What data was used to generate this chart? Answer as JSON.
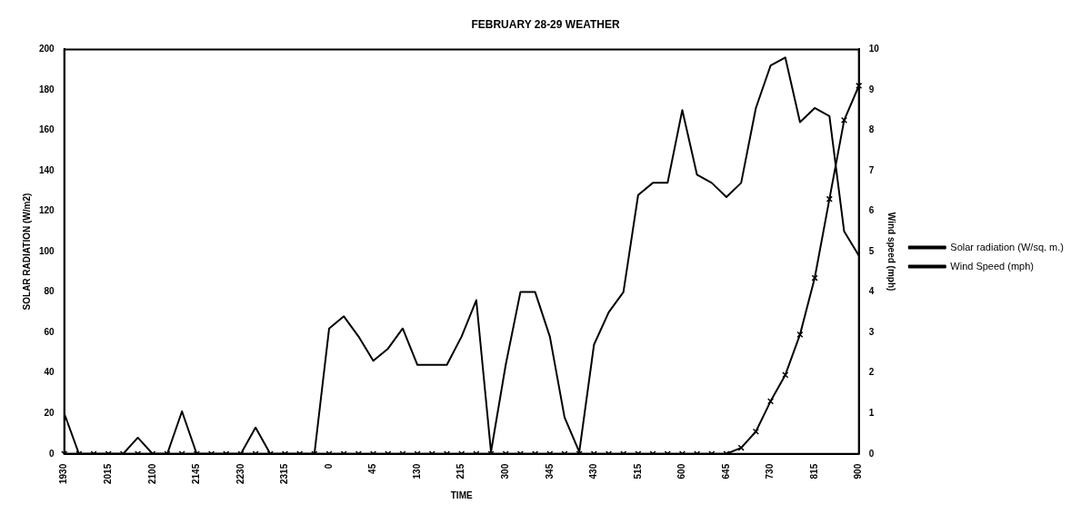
{
  "chart_data": {
    "type": "line",
    "title": "FEBRUARY 28-29 WEATHER",
    "xlabel": "TIME",
    "ylabel": "SOLAR RADIATION (W/m2)",
    "y2label": "Wind speed (mph)",
    "categories": [
      "1930",
      null,
      null,
      "2015",
      null,
      null,
      "2100",
      null,
      null,
      "2145",
      null,
      null,
      "2230",
      null,
      null,
      "2315",
      null,
      null,
      "0",
      null,
      null,
      "45",
      null,
      null,
      "130",
      null,
      null,
      "215",
      null,
      null,
      "300",
      null,
      null,
      "345",
      null,
      null,
      "430",
      null,
      null,
      "515",
      null,
      null,
      "600",
      null,
      null,
      "645",
      null,
      null,
      "730",
      null,
      null,
      "815",
      null,
      null,
      "900"
    ],
    "series": [
      {
        "name": "Solar radiation (W/sq. m.)",
        "color": "#000000",
        "marker": "cross",
        "values": [
          0,
          0,
          0,
          0,
          0,
          0,
          0,
          0,
          0,
          0,
          0,
          0,
          0,
          0,
          0,
          0,
          0,
          0,
          0,
          0,
          0,
          0,
          0,
          0,
          0,
          0,
          0,
          0,
          0,
          0,
          0,
          0,
          0,
          0,
          0,
          0,
          0,
          0,
          0,
          0,
          0,
          0,
          0,
          0,
          0,
          0,
          3,
          11,
          26,
          39,
          59,
          87,
          126,
          165,
          182
        ]
      },
      {
        "name": "Wind Speed (mph)",
        "color": "#000000",
        "axis": "y2",
        "marker": "none",
        "values": [
          1.0,
          0,
          0,
          0,
          0,
          0.4,
          0,
          0,
          1.05,
          0,
          0,
          0,
          0,
          0.65,
          0,
          0,
          0,
          0,
          3.1,
          3.4,
          2.9,
          2.3,
          2.6,
          3.1,
          2.2,
          2.2,
          2.2,
          2.9,
          3.8,
          0.05,
          2.2,
          4.0,
          4.0,
          2.9,
          0.9,
          0.05,
          2.7,
          3.5,
          4.0,
          6.4,
          6.7,
          6.7,
          8.5,
          6.9,
          6.7,
          6.35,
          6.7,
          8.55,
          9.6,
          9.8,
          8.2,
          8.55,
          8.35,
          5.5,
          4.9
        ]
      }
    ],
    "ylim": [
      0,
      200
    ],
    "yticks": [
      0,
      20,
      40,
      60,
      80,
      100,
      120,
      140,
      160,
      180,
      200
    ],
    "y2lim": [
      0,
      10
    ],
    "y2ticks": [
      0,
      1,
      2,
      3,
      4,
      5,
      6,
      7,
      8,
      9,
      10
    ],
    "grid": false,
    "legend": "right"
  }
}
